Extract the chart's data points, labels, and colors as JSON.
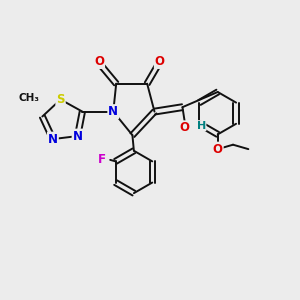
{
  "background_color": "#ececec",
  "figsize": [
    3.0,
    3.0
  ],
  "dpi": 100,
  "lw": 1.4,
  "black": "#111111",
  "colors": {
    "S": "#cccc00",
    "N": "#0000dd",
    "O": "#dd0000",
    "F": "#cc00cc",
    "OH_H": "#008080"
  }
}
